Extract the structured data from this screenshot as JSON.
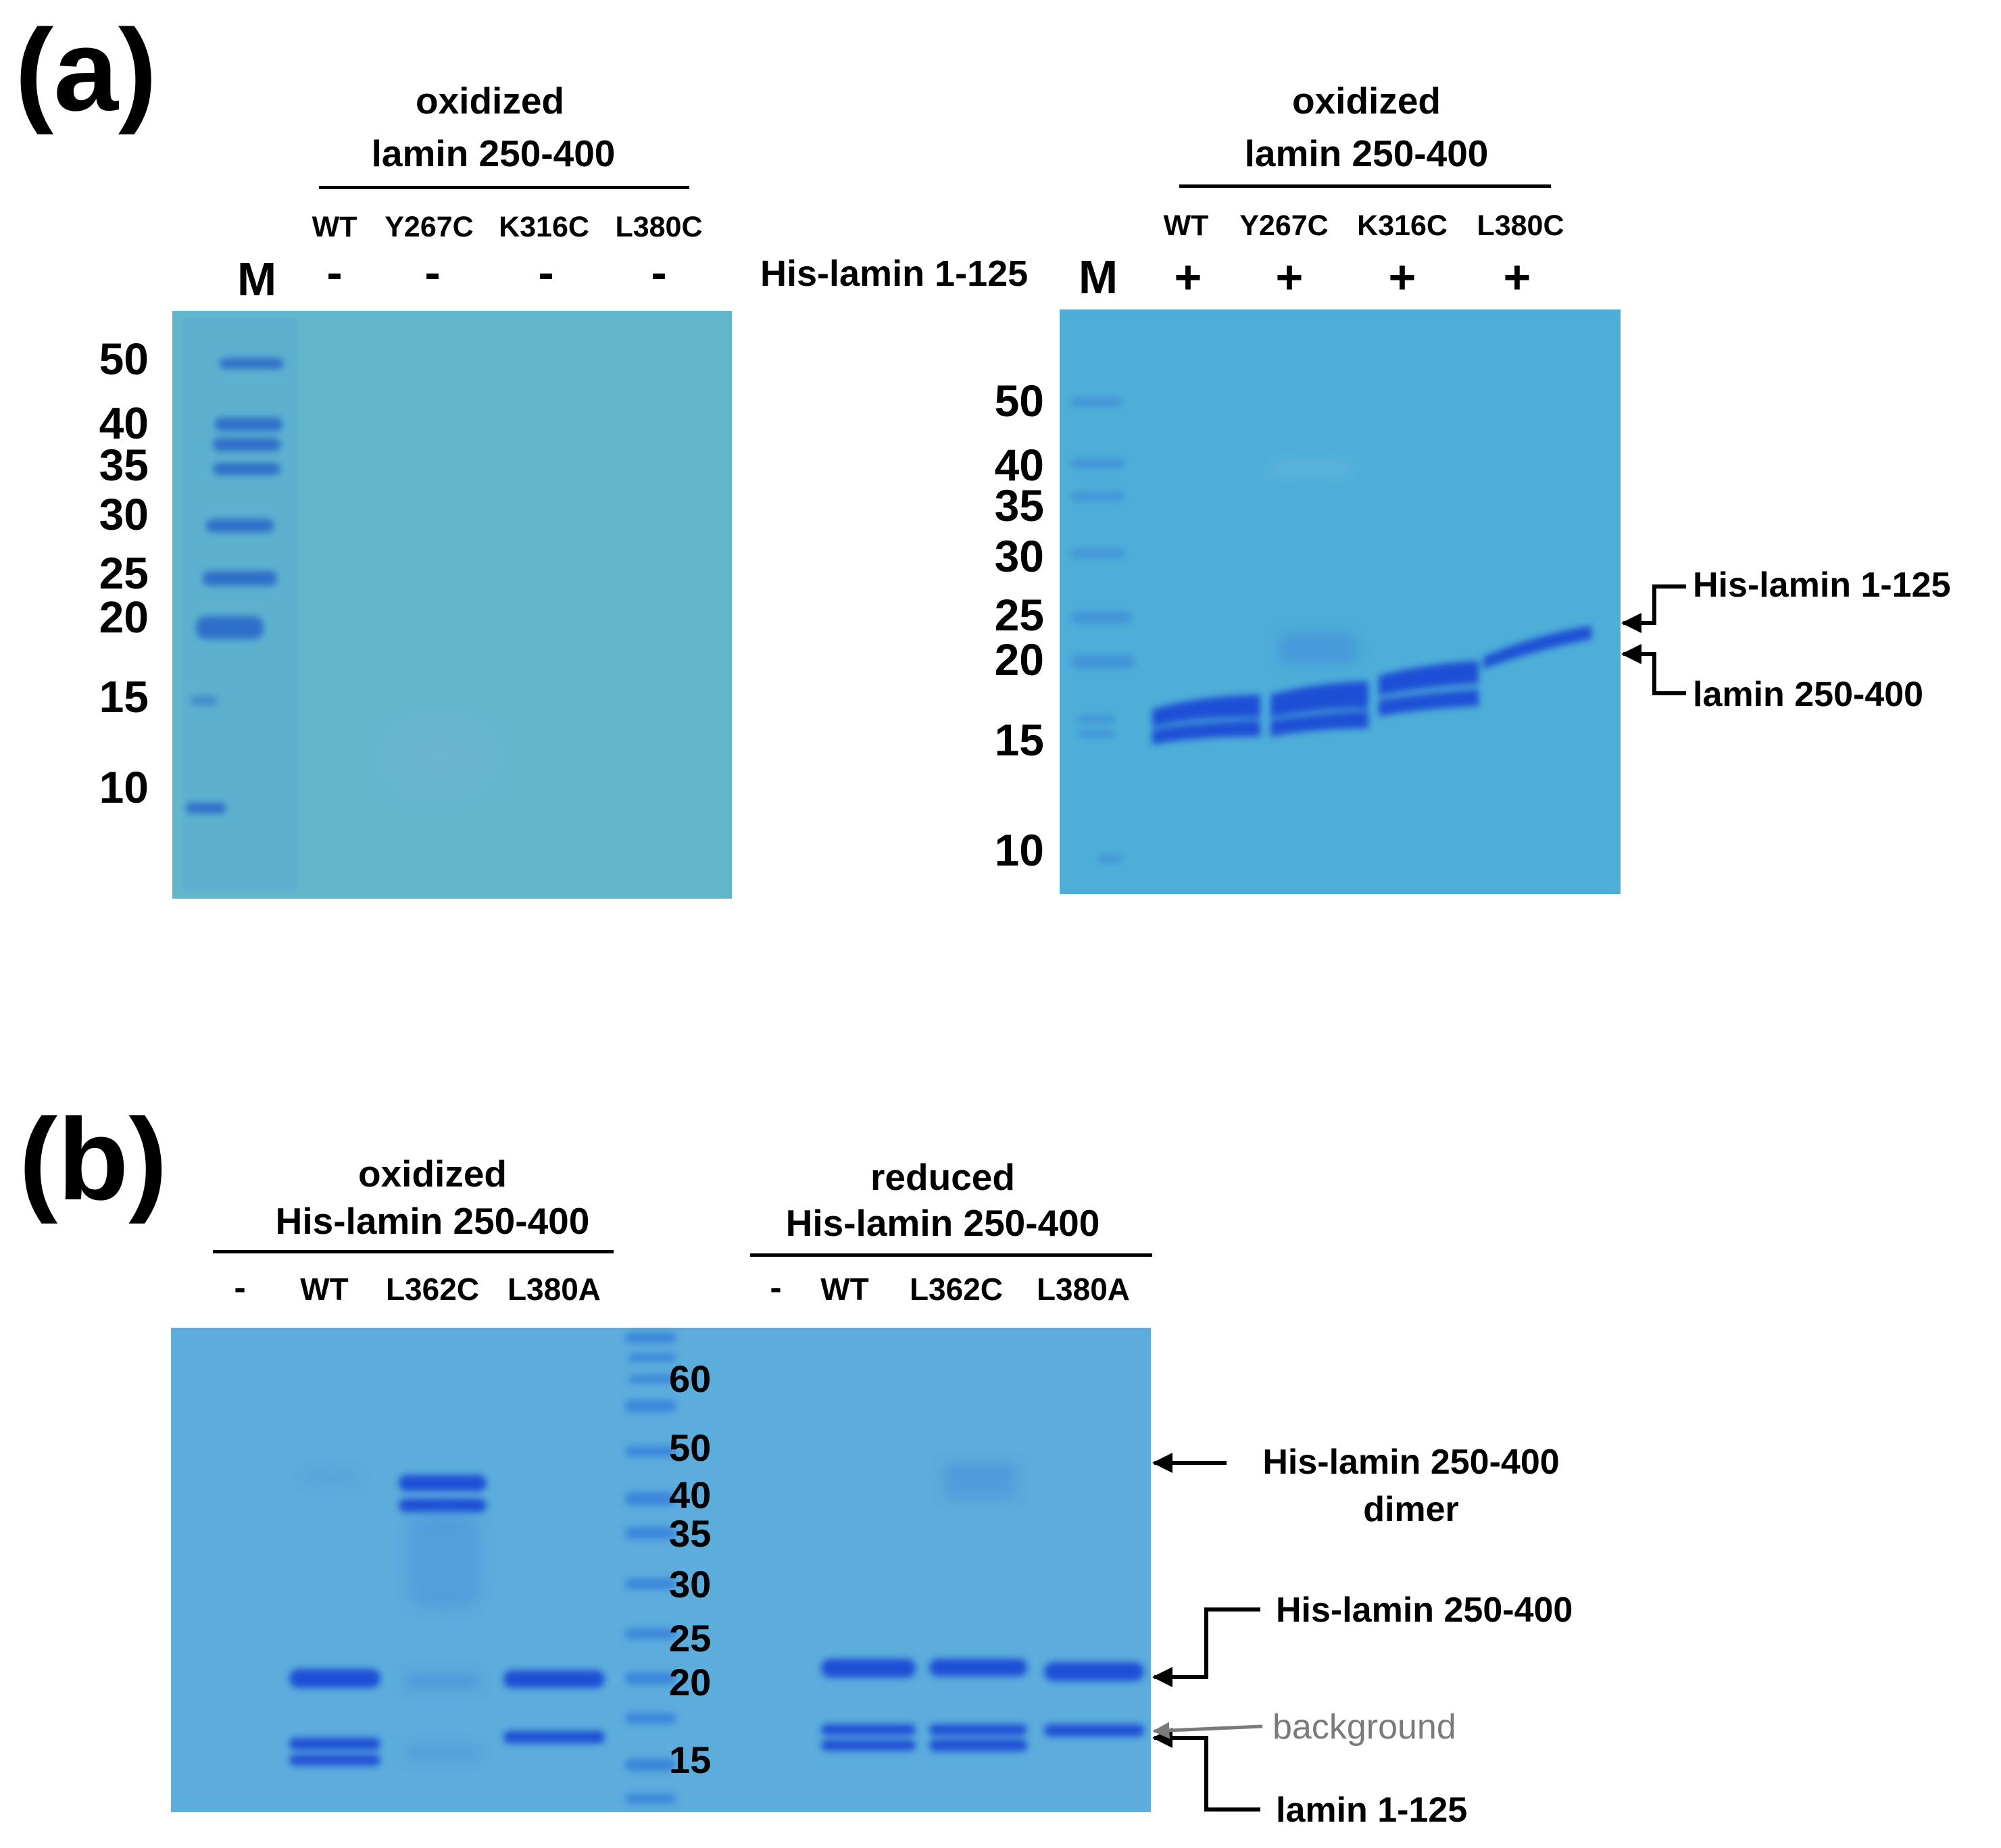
{
  "panels": {
    "a": {
      "label": "(a)",
      "left_gel": {
        "title_line1": "oxidized",
        "title_line2": "lamin 250-400",
        "marker_label": "M",
        "lanes": [
          {
            "name": "WT",
            "sign": "-"
          },
          {
            "name": "Y267C",
            "sign": "-"
          },
          {
            "name": "K316C",
            "sign": "-"
          },
          {
            "name": "L380C",
            "sign": "-"
          }
        ],
        "mw_markers": [
          "50",
          "40",
          "35",
          "30",
          "25",
          "20",
          "15",
          "10"
        ]
      },
      "row_label": "His-lamin 1-125",
      "right_gel": {
        "title_line1": "oxidized",
        "title_line2": "lamin 250-400",
        "marker_label": "M",
        "lanes": [
          {
            "name": "WT",
            "sign": "+"
          },
          {
            "name": "Y267C",
            "sign": "+"
          },
          {
            "name": "K316C",
            "sign": "+"
          },
          {
            "name": "L380C",
            "sign": "+"
          }
        ],
        "mw_markers": [
          "50",
          "40",
          "35",
          "30",
          "25",
          "20",
          "15",
          "10"
        ]
      },
      "annotations": {
        "upper": "His-lamin 1-125",
        "lower": "lamin 250-400"
      }
    },
    "b": {
      "label": "(b)",
      "left_group": {
        "title_line1": "oxidized",
        "title_line2": "His-lamin 250-400",
        "lanes": [
          "-",
          "WT",
          "L362C",
          "L380A"
        ]
      },
      "right_group": {
        "title_line1": "reduced",
        "title_line2": "His-lamin 250-400",
        "lanes": [
          "-",
          "WT",
          "L362C",
          "L380A"
        ]
      },
      "mw_markers": [
        "60",
        "50",
        "40",
        "35",
        "30",
        "25",
        "20",
        "15"
      ],
      "annotations": {
        "dimer_line1": "His-lamin 250-400",
        "dimer_line2": "dimer",
        "monomer": "His-lamin 250-400",
        "background": "background",
        "lamin": "lamin 1-125"
      }
    }
  },
  "colors": {
    "gel_a_left": "#62b6cc",
    "gel_a_right": "#4faed8",
    "gel_b": "#5cacdc",
    "band": "#1a4fd6",
    "band_faint": "#3f86dc"
  }
}
